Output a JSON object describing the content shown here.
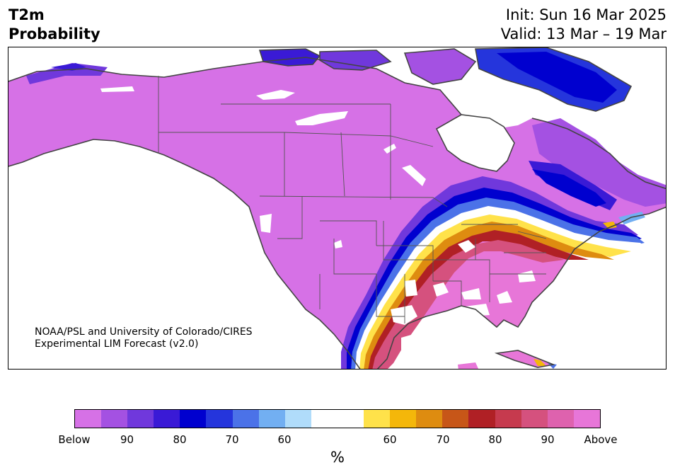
{
  "header": {
    "title_line1": "T2m",
    "title_line2": "Probability",
    "init": "Init: Sun 16 Mar 2025",
    "valid": "Valid: 13 Mar – 19 Mar"
  },
  "map": {
    "credit_line1": "NOAA/PSL and University of Colorado/CIRES",
    "credit_line2": "Experimental LIM Forecast (v2.0)",
    "colors": {
      "below_dominant": "#d671e6",
      "above_dominant": "#e776d8",
      "ocean": "#ffffff",
      "coastline": "#444444"
    }
  },
  "colorbar": {
    "colors": [
      "#d671e6",
      "#a451e2",
      "#7038dc",
      "#3a1ad6",
      "#0000cf",
      "#2535dc",
      "#4b72e8",
      "#72aff2",
      "#b0dcfa",
      "#ffffff",
      "#ffe24a",
      "#f4b70a",
      "#de8c10",
      "#c75618",
      "#b02025",
      "#c63a4e",
      "#d5517e",
      "#de62ae",
      "#e776d8"
    ],
    "tick_labels": [
      "Below",
      "90",
      "80",
      "70",
      "60",
      "60",
      "70",
      "80",
      "90",
      "Above"
    ],
    "unit": "%"
  }
}
